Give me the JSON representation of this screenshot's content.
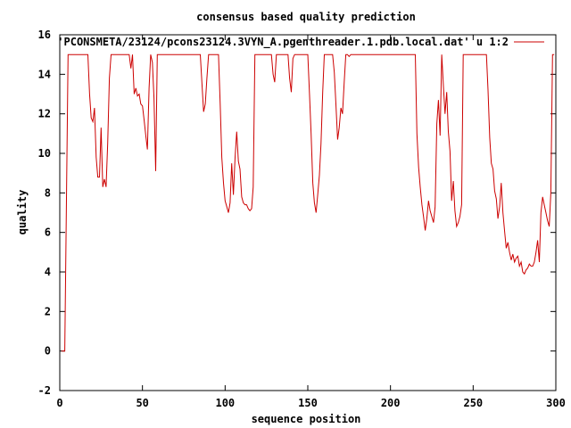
{
  "chart_data": {
    "type": "line",
    "title": "consensus based quality prediction",
    "xlabel": "sequence position",
    "ylabel": "quality",
    "xlim": [
      0,
      300
    ],
    "ylim": [
      -2,
      16
    ],
    "x_ticks": [
      0,
      50,
      100,
      150,
      200,
      250,
      300
    ],
    "y_ticks": [
      -2,
      0,
      2,
      4,
      6,
      8,
      10,
      12,
      14,
      16
    ],
    "grid": false,
    "legend_position": "top-right",
    "series": [
      {
        "name": "'PCONSMETA/23124/pcons23124.3VYN_A.pgenthreader.1.pdb.local.dat' u 1:2",
        "color": "#cc0000",
        "points": [
          [
            1,
            0
          ],
          [
            2,
            0
          ],
          [
            3,
            0
          ],
          [
            4,
            7.3
          ],
          [
            5,
            15
          ],
          [
            10,
            15
          ],
          [
            15,
            15
          ],
          [
            16,
            15
          ],
          [
            17,
            15
          ],
          [
            18,
            13.0
          ],
          [
            19,
            11.8
          ],
          [
            20,
            11.6
          ],
          [
            21,
            12.3
          ],
          [
            22,
            9.8
          ],
          [
            23,
            8.8
          ],
          [
            24,
            8.8
          ],
          [
            25,
            11.3
          ],
          [
            26,
            8.3
          ],
          [
            27,
            8.7
          ],
          [
            28,
            8.3
          ],
          [
            29,
            10.5
          ],
          [
            30,
            13.8
          ],
          [
            31,
            15
          ],
          [
            35,
            15
          ],
          [
            42,
            15
          ],
          [
            43,
            14.3
          ],
          [
            44,
            15
          ],
          [
            45,
            13.0
          ],
          [
            46,
            13.3
          ],
          [
            47,
            12.9
          ],
          [
            48,
            13.0
          ],
          [
            49,
            12.5
          ],
          [
            50,
            12.4
          ],
          [
            51,
            11.7
          ],
          [
            52,
            10.9
          ],
          [
            53,
            10.2
          ],
          [
            54,
            13.3
          ],
          [
            55,
            15
          ],
          [
            56,
            14.6
          ],
          [
            57,
            12.8
          ],
          [
            58,
            9.1
          ],
          [
            59,
            15
          ],
          [
            60,
            15
          ],
          [
            70,
            15
          ],
          [
            85,
            15
          ],
          [
            86,
            13.5
          ],
          [
            87,
            12.1
          ],
          [
            88,
            12.5
          ],
          [
            89,
            13.8
          ],
          [
            90,
            15
          ],
          [
            96,
            15
          ],
          [
            97,
            12.5
          ],
          [
            98,
            9.8
          ],
          [
            99,
            8.5
          ],
          [
            100,
            7.6
          ],
          [
            101,
            7.3
          ],
          [
            102,
            7.0
          ],
          [
            103,
            7.5
          ],
          [
            104,
            9.5
          ],
          [
            105,
            7.9
          ],
          [
            106,
            9.8
          ],
          [
            107,
            11.1
          ],
          [
            108,
            9.6
          ],
          [
            109,
            9.2
          ],
          [
            110,
            7.8
          ],
          [
            111,
            7.5
          ],
          [
            112,
            7.4
          ],
          [
            113,
            7.4
          ],
          [
            114,
            7.2
          ],
          [
            115,
            7.1
          ],
          [
            116,
            7.2
          ],
          [
            117,
            8.3
          ],
          [
            118,
            15
          ],
          [
            120,
            15
          ],
          [
            128,
            15
          ],
          [
            129,
            14.0
          ],
          [
            130,
            13.6
          ],
          [
            131,
            15
          ],
          [
            138,
            15
          ],
          [
            139,
            13.8
          ],
          [
            140,
            13.1
          ],
          [
            141,
            14.8
          ],
          [
            142,
            15
          ],
          [
            150,
            15
          ],
          [
            151,
            13.0
          ],
          [
            152,
            11.0
          ],
          [
            153,
            8.5
          ],
          [
            154,
            7.5
          ],
          [
            155,
            7.0
          ],
          [
            156,
            7.9
          ],
          [
            157,
            8.9
          ],
          [
            158,
            10.5
          ],
          [
            159,
            13.1
          ],
          [
            160,
            15
          ],
          [
            165,
            15
          ],
          [
            166,
            14.1
          ],
          [
            167,
            12.5
          ],
          [
            168,
            10.7
          ],
          [
            169,
            11.3
          ],
          [
            170,
            12.3
          ],
          [
            171,
            12.0
          ],
          [
            172,
            13.6
          ],
          [
            173,
            15
          ],
          [
            174,
            15
          ],
          [
            175,
            14.9
          ],
          [
            176,
            15
          ],
          [
            215,
            15
          ],
          [
            216,
            11.0
          ],
          [
            217,
            9.3
          ],
          [
            218,
            8.3
          ],
          [
            219,
            7.4
          ],
          [
            220,
            6.8
          ],
          [
            221,
            6.1
          ],
          [
            222,
            6.7
          ],
          [
            223,
            7.6
          ],
          [
            224,
            7.1
          ],
          [
            225,
            6.8
          ],
          [
            226,
            6.5
          ],
          [
            227,
            7.3
          ],
          [
            228,
            11.5
          ],
          [
            229,
            12.7
          ],
          [
            230,
            10.9
          ],
          [
            231,
            15
          ],
          [
            232,
            13.4
          ],
          [
            233,
            12.0
          ],
          [
            234,
            13.1
          ],
          [
            235,
            11.1
          ],
          [
            236,
            10.1
          ],
          [
            237,
            7.6
          ],
          [
            238,
            8.6
          ],
          [
            239,
            7.1
          ],
          [
            240,
            6.3
          ],
          [
            241,
            6.5
          ],
          [
            242,
            6.8
          ],
          [
            243,
            7.4
          ],
          [
            244,
            15
          ],
          [
            258,
            15
          ],
          [
            259,
            13.2
          ],
          [
            260,
            10.8
          ],
          [
            261,
            9.5
          ],
          [
            262,
            9.2
          ],
          [
            263,
            8.1
          ],
          [
            264,
            7.7
          ],
          [
            265,
            6.7
          ],
          [
            266,
            7.3
          ],
          [
            267,
            8.5
          ],
          [
            268,
            7.0
          ],
          [
            269,
            6.1
          ],
          [
            270,
            5.2
          ],
          [
            271,
            5.5
          ],
          [
            272,
            5.0
          ],
          [
            273,
            4.6
          ],
          [
            274,
            4.9
          ],
          [
            275,
            4.5
          ],
          [
            276,
            4.7
          ],
          [
            277,
            4.8
          ],
          [
            278,
            4.3
          ],
          [
            279,
            4.5
          ],
          [
            280,
            4.0
          ],
          [
            281,
            3.9
          ],
          [
            282,
            4.1
          ],
          [
            283,
            4.2
          ],
          [
            284,
            4.4
          ],
          [
            285,
            4.3
          ],
          [
            286,
            4.3
          ],
          [
            287,
            4.5
          ],
          [
            288,
            5.0
          ],
          [
            289,
            5.6
          ],
          [
            290,
            4.5
          ],
          [
            291,
            7.0
          ],
          [
            292,
            7.8
          ],
          [
            293,
            7.4
          ],
          [
            294,
            7.0
          ],
          [
            295,
            6.6
          ],
          [
            296,
            6.3
          ],
          [
            297,
            8.0
          ],
          [
            298,
            15
          ],
          [
            299,
            15
          ]
        ]
      }
    ]
  }
}
